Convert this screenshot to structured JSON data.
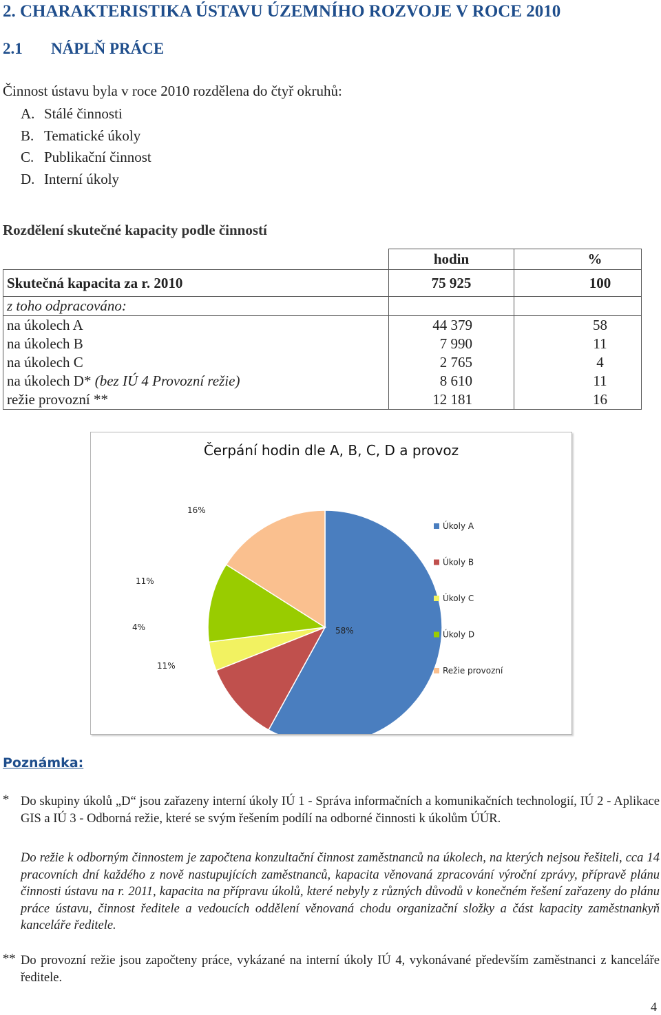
{
  "heading": "2. CHARAKTERISTIKA ÚSTAVU ÚZEMNÍHO ROZVOJE V ROCE 2010",
  "subheading": {
    "number": "2.1",
    "title": "NÁPLŇ PRÁCE"
  },
  "intro": "Činnost ústavu byla v roce 2010 rozdělena do čtyř okruhů:",
  "list": [
    {
      "letter": "A.",
      "text": "Stálé činnosti"
    },
    {
      "letter": "B.",
      "text": "Tematické úkoly"
    },
    {
      "letter": "C.",
      "text": "Publikační činnost"
    },
    {
      "letter": "D.",
      "text": "Interní úkoly"
    }
  ],
  "section_title": "Rozdělení skutečné kapacity podle činností",
  "table": {
    "col_hours": "hodin",
    "col_percent": "%",
    "total": {
      "label": "Skutečná kapacita za r. 2010",
      "hours": "75 925",
      "percent": "100"
    },
    "of_which": "z toho odpracováno:",
    "rows": [
      {
        "label": "na úkolech A",
        "label_italic": "",
        "hours": "44 379",
        "percent": "58"
      },
      {
        "label": "na úkolech B",
        "label_italic": "",
        "hours": "7 990",
        "percent": "11"
      },
      {
        "label": "na úkolech C",
        "label_italic": "",
        "hours": "2 765",
        "percent": "4"
      },
      {
        "label": "na úkolech D* ",
        "label_italic": "(bez IÚ 4 Provozní režie)",
        "hours": "8 610",
        "percent": "11"
      },
      {
        "label": "režie provozní **",
        "label_italic": "",
        "hours": "12 181",
        "percent": "16"
      }
    ]
  },
  "chart_data": {
    "type": "pie",
    "title": "Čerpání hodin dle A, B, C, D a provoz",
    "categories": [
      "Úkoly A",
      "Úkoly B",
      "Úkoly C",
      "Úkoly D",
      "Režie provozní"
    ],
    "values": [
      58,
      11,
      4,
      11,
      16
    ],
    "data_labels": [
      "58%",
      "11%",
      "4%",
      "11%",
      "16%"
    ],
    "colors": [
      "#4a7ebf",
      "#c0504d",
      "#f2f261",
      "#99cc00",
      "#fac08f"
    ],
    "legend": "right"
  },
  "notes": {
    "title": "Poznámka:",
    "star_mark": "*",
    "star_text": "Do skupiny úkolů „D“ jsou zařazeny interní úkoly IÚ 1 - Správa informačních a komunikačních technologií, IÚ 2 - Aplikace GIS a IÚ 3 - Odborná režie, které se svým řešením podílí na odborné činnosti k úkolům ÚÚR.",
    "star_italic": "Do režie k odborným činnostem je započtena konzultační činnost zaměstnanců na úkolech, na kterých nejsou řešiteli, cca 14 pracovních dní každého z nově nastupujících zaměstnanců, kapacita věnovaná zpracování výroční zprávy, přípravě plánu činnosti ústavu na r. 2011, kapacita na přípravu úkolů, které nebyly z různých důvodů v konečném řešení zařazeny do plánu práce ústavu, činnost ředitele a vedoucích oddělení věnovaná chodu organizační složky a část kapacity zaměstnankyň kanceláře ředitele.",
    "double_mark": "**",
    "double_text": "Do provozní režie jsou započteny práce, vykázané na interní úkoly IÚ 4, vykonávané především zaměstnanci z kanceláře ředitele."
  },
  "page_number": "4"
}
